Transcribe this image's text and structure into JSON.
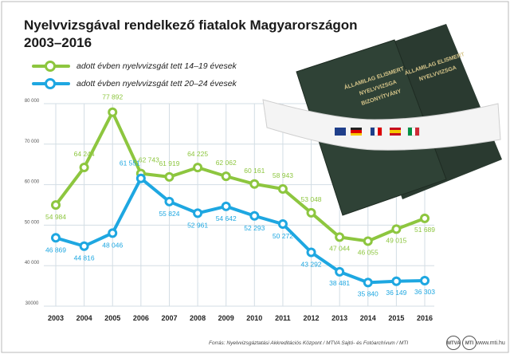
{
  "title_line1": "Nyelvvizsgával rendelkező fiatalok Magyarországon",
  "title_line2": "2003–2016",
  "legend": {
    "series1": "adott évben nyelvvizsgát tett 14–19 évesek",
    "series2": "adott évben nyelvvizsgát tett 20–24 évesek"
  },
  "colors": {
    "green": "#8dc63f",
    "blue": "#1ea7e1",
    "grid": "#d3dde4",
    "frame": "#b8b8b8"
  },
  "image_text": {
    "book_text": "ÁLLAMILAG ELISMERT NYELVVIZSGA BIZONYÍTVÁNY"
  },
  "footer": {
    "source": "Forrás: Nyelvvizsgáztatási Akkreditációs Központ / MTVA Sajtó- és Fotóarchívum / MTI",
    "site": "www.mti.hu",
    "logo1": "MTVA",
    "logo2": "MTI"
  },
  "chart_data": {
    "type": "line",
    "title": "Nyelvvizsgával rendelkező fiatalok Magyarországon 2003–2016",
    "x": [
      "2003",
      "2004",
      "2005",
      "2006",
      "2007",
      "2008",
      "2009",
      "2010",
      "2011",
      "2012",
      "2013",
      "2014",
      "2015",
      "2016"
    ],
    "ylim": [
      30000,
      80000
    ],
    "yticks": [
      30000,
      40000,
      50000,
      60000,
      70000,
      80000
    ],
    "ytick_labels": [
      "30000",
      "40 000",
      "50 000",
      "60 000",
      "70 000",
      "80 000"
    ],
    "grid": true,
    "legend_position": "top-left",
    "series": [
      {
        "name": "adott évben nyelvvizsgát tett 14–19 évesek",
        "color": "#8dc63f",
        "values": [
          54984,
          64244,
          77892,
          62743,
          61919,
          64225,
          62062,
          60161,
          58943,
          53048,
          47044,
          46055,
          49015,
          51689
        ],
        "labels": [
          "54 984",
          "64 244",
          "77 892",
          "62 743",
          "61 919",
          "64 225",
          "62 062",
          "60 161",
          "58 943",
          "53 048",
          "47 044",
          "46 055",
          "49 015",
          "51 689"
        ]
      },
      {
        "name": "adott évben nyelvvizsgát tett 20–24 évesek",
        "color": "#1ea7e1",
        "values": [
          46869,
          44816,
          48046,
          61551,
          55824,
          52961,
          54642,
          52293,
          50272,
          43292,
          38481,
          35840,
          36149,
          36303
        ],
        "labels": [
          "46 869",
          "44 816",
          "48 046",
          "61 551",
          "55 824",
          "52 961",
          "54 642",
          "52 293",
          "50 272",
          "43 292",
          "38 481",
          "35 840",
          "36 149",
          "36 303"
        ]
      }
    ]
  }
}
